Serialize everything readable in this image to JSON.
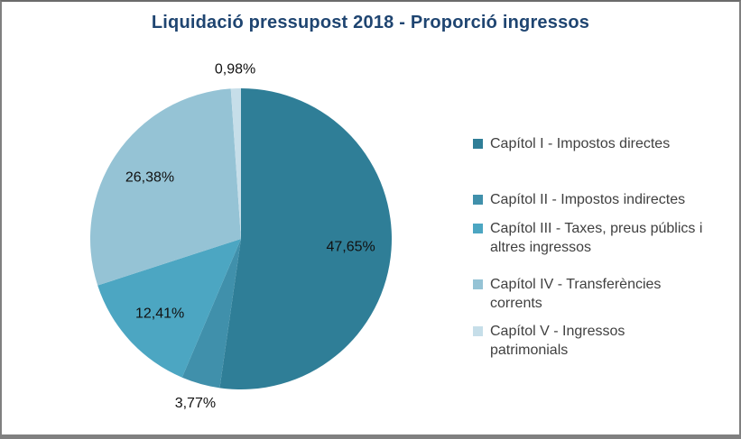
{
  "title": "Liquidació pressupost 2018 - Proporció ingressos",
  "title_color": "#1F4571",
  "frame_border_color": "#808080",
  "data_label_color": "#111111",
  "legend_text_color": "#404040",
  "chart_data": {
    "type": "pie",
    "title": "Liquidació pressupost 2018 - Proporció ingressos",
    "direction": "clockwise",
    "start_angle_deg": 0,
    "legend_position": "right",
    "slices": [
      {
        "label": "Capítol I - Impostos directes",
        "value": 47.65,
        "display": "47,65%",
        "color": "#2F7E97",
        "label_placement": "inside"
      },
      {
        "label": "Capítol II - Impostos indirectes",
        "value": 3.77,
        "display": "3,77%",
        "color": "#4090AB",
        "label_placement": "outside"
      },
      {
        "label": "Capítol III - Taxes, preus públics i altres ingressos",
        "value": 12.41,
        "display": "12,41%",
        "color": "#4CA6C2",
        "label_placement": "inside"
      },
      {
        "label": "Capítol IV - Transferències corrents",
        "value": 26.38,
        "display": "26,38%",
        "color": "#95C3D5",
        "label_placement": "inside"
      },
      {
        "label": "Capítol V - Ingressos patrimonials",
        "value": 0.98,
        "display": "0,98%",
        "color": "#C6DEE9",
        "label_placement": "outside"
      }
    ]
  }
}
